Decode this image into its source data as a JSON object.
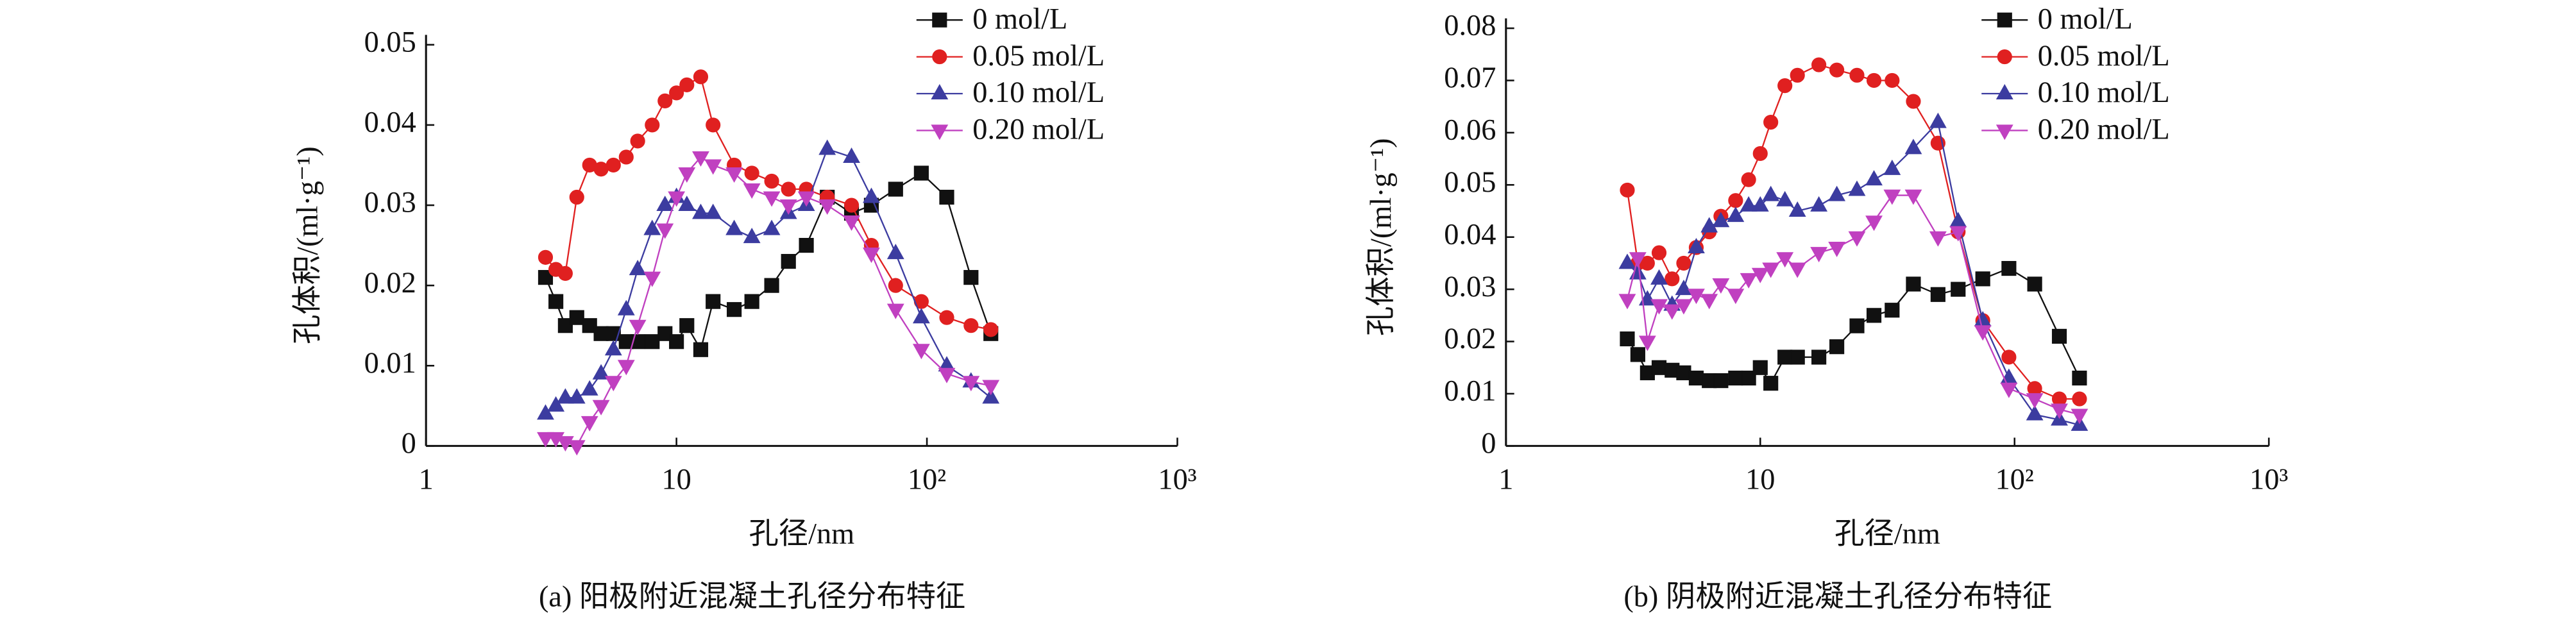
{
  "chart_data": [
    {
      "type": "line",
      "xscale": "log",
      "xlabel": "孔径/nm",
      "ylabel": "孔体积/(ml·g⁻¹)",
      "caption": "(a) 阳极附近混凝土孔径分布特征",
      "xlim": [
        1,
        1000
      ],
      "xticks": [
        1,
        10,
        {
          "value": 100,
          "label": "10²"
        },
        {
          "value": 1000,
          "label": "10³"
        }
      ],
      "ylim": [
        0,
        0.05
      ],
      "yticks": [
        0,
        0.01,
        0.02,
        0.03,
        0.04,
        0.05
      ],
      "legend": "upper right",
      "x": [
        3,
        3.3,
        3.6,
        4,
        4.5,
        5,
        5.6,
        6.3,
        7,
        8,
        9,
        10,
        11,
        12.5,
        14,
        17,
        20,
        24,
        28,
        33,
        40,
        50,
        60,
        75,
        95,
        120,
        150,
        180
      ],
      "series": [
        {
          "name": "0 mol/L",
          "color": "#111111",
          "marker": "square",
          "values": [
            0.021,
            0.018,
            0.015,
            0.016,
            0.015,
            0.014,
            0.014,
            0.013,
            0.013,
            0.013,
            0.014,
            0.013,
            0.015,
            0.012,
            0.018,
            0.017,
            0.018,
            0.02,
            0.023,
            0.025,
            0.031,
            0.029,
            0.03,
            0.032,
            0.034,
            0.031,
            0.021,
            0.014
          ]
        },
        {
          "name": "0.05 mol/L",
          "color": "#e02020",
          "marker": "circle",
          "values": [
            0.0235,
            0.022,
            0.0215,
            0.031,
            0.035,
            0.0345,
            0.035,
            0.036,
            0.038,
            0.04,
            0.043,
            0.044,
            0.045,
            0.046,
            0.04,
            0.035,
            0.034,
            0.033,
            0.032,
            0.032,
            0.031,
            0.03,
            0.025,
            0.02,
            0.018,
            0.016,
            0.015,
            0.0145
          ]
        },
        {
          "name": "0.10 mol/L",
          "color": "#3c3ca0",
          "marker": "triangle-up",
          "values": [
            0.004,
            0.005,
            0.006,
            0.006,
            0.007,
            0.009,
            0.012,
            0.017,
            0.022,
            0.027,
            0.03,
            0.031,
            0.03,
            0.029,
            0.029,
            0.027,
            0.026,
            0.027,
            0.029,
            0.03,
            0.037,
            0.036,
            0.031,
            0.024,
            0.016,
            0.01,
            0.008,
            0.006
          ]
        },
        {
          "name": "0.20 mol/L",
          "color": "#c040c0",
          "marker": "triangle-down",
          "values": [
            0.001,
            0.001,
            0.0005,
            0,
            0.003,
            0.005,
            0.008,
            0.01,
            0.015,
            0.021,
            0.027,
            0.031,
            0.034,
            0.036,
            0.035,
            0.034,
            0.032,
            0.031,
            0.03,
            0.031,
            0.03,
            0.028,
            0.024,
            0.017,
            0.012,
            0.009,
            0.008,
            0.0075
          ]
        }
      ]
    },
    {
      "type": "line",
      "xscale": "log",
      "xlabel": "孔径/nm",
      "ylabel": "孔体积/(ml·g⁻¹)",
      "caption": "(b) 阴极附近混凝土孔径分布特征",
      "xlim": [
        1,
        1000
      ],
      "xticks": [
        1,
        10,
        {
          "value": 100,
          "label": "10²"
        },
        {
          "value": 1000,
          "label": "10³"
        }
      ],
      "ylim": [
        0,
        0.08
      ],
      "yticks": [
        0,
        0.01,
        0.02,
        0.03,
        0.04,
        0.05,
        0.06,
        0.07,
        0.08
      ],
      "legend": "upper right",
      "x": [
        3,
        3.3,
        3.6,
        4,
        4.5,
        5,
        5.6,
        6.3,
        7,
        8,
        9,
        10,
        11,
        12.5,
        14,
        17,
        20,
        24,
        28,
        33,
        40,
        50,
        60,
        75,
        95,
        120,
        150,
        180
      ],
      "series": [
        {
          "name": "0 mol/L",
          "color": "#111111",
          "marker": "square",
          "values": [
            0.0205,
            0.0175,
            0.014,
            0.015,
            0.0145,
            0.014,
            0.013,
            0.0125,
            0.0125,
            0.013,
            0.013,
            0.015,
            0.012,
            0.017,
            0.017,
            0.017,
            0.019,
            0.023,
            0.025,
            0.026,
            0.031,
            0.029,
            0.03,
            0.032,
            0.034,
            0.031,
            0.021,
            0.013
          ]
        },
        {
          "name": "0.05 mol/L",
          "color": "#e02020",
          "marker": "circle",
          "values": [
            0.049,
            0.035,
            0.035,
            0.037,
            0.032,
            0.035,
            0.038,
            0.041,
            0.044,
            0.047,
            0.051,
            0.056,
            0.062,
            0.069,
            0.071,
            0.073,
            0.072,
            0.071,
            0.07,
            0.07,
            0.066,
            0.058,
            0.041,
            0.024,
            0.017,
            0.011,
            0.009,
            0.009
          ]
        },
        {
          "name": "0.10 mol/L",
          "color": "#3c3ca0",
          "marker": "triangle-up",
          "values": [
            0.035,
            0.033,
            0.028,
            0.032,
            0.027,
            0.03,
            0.038,
            0.042,
            0.043,
            0.044,
            0.046,
            0.046,
            0.048,
            0.047,
            0.045,
            0.046,
            0.048,
            0.049,
            0.051,
            0.053,
            0.057,
            0.062,
            0.043,
            0.024,
            0.013,
            0.006,
            0.005,
            0.004
          ]
        },
        {
          "name": "0.20 mol/L",
          "color": "#c040c0",
          "marker": "triangle-down",
          "values": [
            0.028,
            0.036,
            0.02,
            0.027,
            0.026,
            0.027,
            0.029,
            0.028,
            0.031,
            0.029,
            0.032,
            0.033,
            0.034,
            0.036,
            0.034,
            0.037,
            0.038,
            0.04,
            0.043,
            0.048,
            0.048,
            0.04,
            0.041,
            0.022,
            0.011,
            0.009,
            0.007,
            0.006
          ]
        }
      ]
    }
  ]
}
